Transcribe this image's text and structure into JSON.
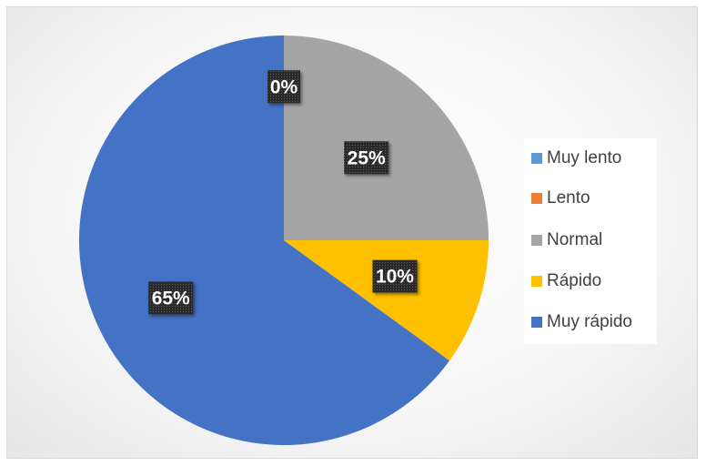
{
  "chart_data": {
    "type": "pie",
    "categories": [
      "Muy lento",
      "Lento",
      "Normal",
      "Rápido",
      "Muy rápido"
    ],
    "values": [
      0,
      0,
      25,
      10,
      65
    ],
    "data_labels": [
      "0%",
      "",
      "25%",
      "10%",
      "65%"
    ],
    "colors": [
      "#5b9bd5",
      "#ed7d31",
      "#a5a5a5",
      "#ffc000",
      "#4472c4"
    ],
    "legend_position": "right",
    "start_angle": "12 o'clock",
    "direction": "clockwise"
  }
}
